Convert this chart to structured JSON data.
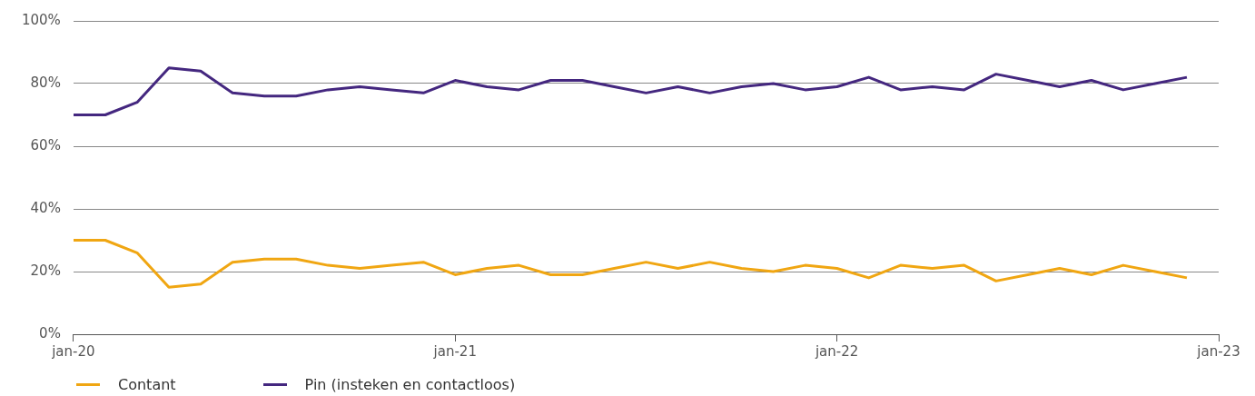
{
  "chart_data": {
    "type": "line",
    "x": [
      "2020-01",
      "2020-02",
      "2020-03",
      "2020-04",
      "2020-05",
      "2020-06",
      "2020-07",
      "2020-08",
      "2020-09",
      "2020-10",
      "2020-11",
      "2020-12",
      "2021-01",
      "2021-02",
      "2021-03",
      "2021-04",
      "2021-05",
      "2021-06",
      "2021-07",
      "2021-08",
      "2021-09",
      "2021-10",
      "2021-11",
      "2021-12",
      "2022-01",
      "2022-02",
      "2022-03",
      "2022-04",
      "2022-05",
      "2022-06",
      "2022-07",
      "2022-08",
      "2022-09",
      "2022-10",
      "2022-11",
      "2022-12"
    ],
    "series": [
      {
        "name": "Contant",
        "color": "#f0a612",
        "values": [
          30,
          30,
          26,
          15,
          16,
          23,
          24,
          24,
          22,
          21,
          22,
          23,
          19,
          21,
          22,
          19,
          19,
          21,
          23,
          21,
          23,
          21,
          20,
          22,
          21,
          18,
          22,
          21,
          22,
          17,
          19,
          21,
          19,
          22,
          20,
          18
        ]
      },
      {
        "name": "Pin (insteken en contactloos)",
        "color": "#44277f",
        "values": [
          70,
          70,
          74,
          85,
          84,
          77,
          76,
          76,
          78,
          79,
          78,
          77,
          81,
          79,
          78,
          81,
          81,
          79,
          77,
          79,
          77,
          79,
          80,
          78,
          79,
          82,
          78,
          79,
          78,
          83,
          81,
          79,
          81,
          78,
          80,
          82
        ]
      }
    ],
    "xlim": [
      "2020-01",
      "2023-01"
    ],
    "xticks": [
      {
        "value": "2020-01",
        "label": "jan-20"
      },
      {
        "value": "2021-01",
        "label": "jan-21"
      },
      {
        "value": "2022-01",
        "label": "jan-22"
      },
      {
        "value": "2023-01",
        "label": "jan-23"
      }
    ],
    "ylim": [
      0,
      100
    ],
    "yticks": [
      {
        "value": 0,
        "label": "0%"
      },
      {
        "value": 20,
        "label": "20%"
      },
      {
        "value": 40,
        "label": "40%"
      },
      {
        "value": 60,
        "label": "60%"
      },
      {
        "value": 80,
        "label": "80%"
      },
      {
        "value": 100,
        "label": "100%"
      }
    ],
    "grid": "y",
    "legend": "bottom left",
    "marker": "none",
    "line_style": "solid"
  }
}
